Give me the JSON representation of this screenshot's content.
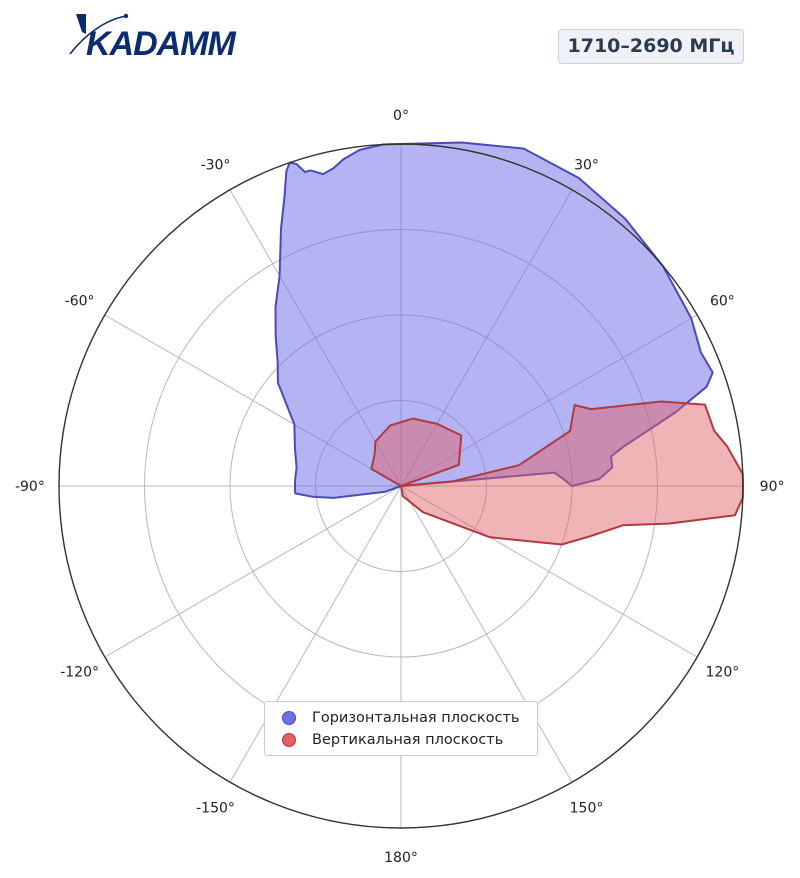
{
  "logo": {
    "text": "KADAMM",
    "color": "#0b2d6f"
  },
  "frequency_badge": "1710–2690 МГц",
  "chart_data": {
    "type": "polar-area",
    "angle_ticks": [
      "0°",
      "30°",
      "60°",
      "90°",
      "120°",
      "150°",
      "180°",
      "-150°",
      "-120°",
      "-90°",
      "-60°",
      "-30°"
    ],
    "radial_rings": 4,
    "rlim": [
      0,
      1
    ],
    "grid": true,
    "legend_position": "bottom-center",
    "series": [
      {
        "name": "Горизонтальная плоскость",
        "color": "#7070e8",
        "points": [
          [
            0,
            1.0
          ],
          [
            -3,
            1.0
          ],
          [
            -7,
            0.99
          ],
          [
            -10,
            0.97
          ],
          [
            -12,
            0.95
          ],
          [
            -14,
            0.94
          ],
          [
            -16,
            0.96
          ],
          [
            -17,
            0.96
          ],
          [
            -18,
            0.99
          ],
          [
            -19,
            1.0
          ],
          [
            -20,
            0.98
          ],
          [
            -22,
            0.91
          ],
          [
            -25,
            0.83
          ],
          [
            -30,
            0.71
          ],
          [
            -35,
            0.64
          ],
          [
            -40,
            0.57
          ],
          [
            -45,
            0.51
          ],
          [
            -50,
            0.47
          ],
          [
            -60,
            0.36
          ],
          [
            -70,
            0.33
          ],
          [
            -80,
            0.31
          ],
          [
            -85,
            0.31
          ],
          [
            -88,
            0.31
          ],
          [
            -90,
            0.31
          ],
          [
            -92,
            0.31
          ],
          [
            -94,
            0.31
          ],
          [
            -97,
            0.26
          ],
          [
            -100,
            0.2
          ],
          [
            -110,
            0.05
          ],
          [
            -120,
            0.0
          ],
          [
            0,
            0.0
          ],
          [
            60,
            0.0
          ],
          [
            85,
            0.45
          ],
          [
            88,
            0.48
          ],
          [
            90,
            0.5
          ],
          [
            88,
            0.58
          ],
          [
            85,
            0.62
          ],
          [
            82,
            0.62
          ],
          [
            80,
            0.66
          ],
          [
            75,
            0.83
          ],
          [
            72,
            0.94
          ],
          [
            70,
            0.97
          ],
          [
            66,
            0.96
          ],
          [
            60,
            0.98
          ],
          [
            50,
            1.0
          ],
          [
            40,
            1.02
          ],
          [
            30,
            1.04
          ],
          [
            20,
            1.05
          ],
          [
            10,
            1.02
          ],
          [
            0,
            1.0
          ]
        ]
      },
      {
        "name": "Вертикальная плоскость",
        "color": "#e06066",
        "points": [
          [
            90,
            0.0
          ],
          [
            85,
            0.15
          ],
          [
            80,
            0.35
          ],
          [
            72,
            0.52
          ],
          [
            65,
            0.56
          ],
          [
            68,
            0.6
          ],
          [
            72,
            0.8
          ],
          [
            75,
            0.92
          ],
          [
            80,
            0.93
          ],
          [
            83,
            0.96
          ],
          [
            88,
            1.0
          ],
          [
            90,
            1.0
          ],
          [
            92,
            1.0
          ],
          [
            95,
            0.98
          ],
          [
            98,
            0.79
          ],
          [
            100,
            0.66
          ],
          [
            105,
            0.57
          ],
          [
            110,
            0.5
          ],
          [
            120,
            0.3
          ],
          [
            140,
            0.1
          ],
          [
            170,
            0.03
          ],
          [
            180,
            0.0
          ],
          [
            -90,
            0.0
          ],
          [
            -60,
            0.1
          ],
          [
            -40,
            0.12
          ],
          [
            -30,
            0.15
          ],
          [
            -10,
            0.18
          ],
          [
            10,
            0.2
          ],
          [
            30,
            0.21
          ],
          [
            50,
            0.23
          ],
          [
            70,
            0.18
          ],
          [
            90,
            0.0
          ]
        ]
      }
    ]
  },
  "legend": {
    "items": [
      {
        "label": "Горизонтальная плоскость",
        "color": "#7070e8"
      },
      {
        "label": "Вертикальная плоскость",
        "color": "#e06066"
      }
    ]
  }
}
